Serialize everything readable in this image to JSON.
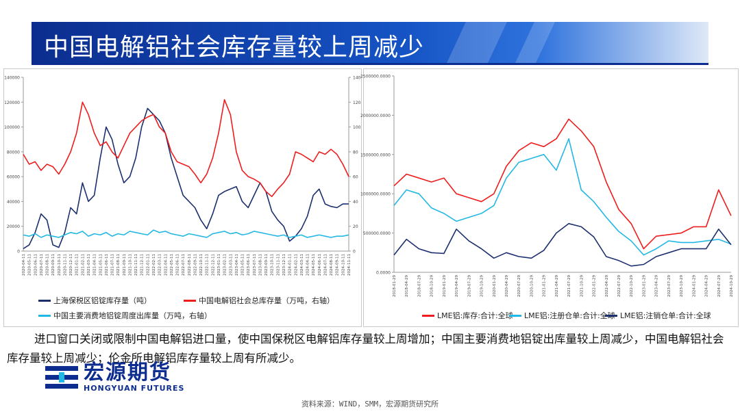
{
  "header": {
    "title": "中国电解铝社会库存量较上周减少"
  },
  "body_text": "进口窗口关闭或限制中国电解铝进口量，使中国保税区电解铝库存量较上周增加；中国主要消费地铝锭出库量较上周减少，中国电解铝社会库存量较上周减少；伦金所电解铝库存量较上周有所减少。",
  "brand": {
    "name_cn": "宏源期货",
    "name_en": "HONGYUAN FUTURES"
  },
  "source": "资料来源：WIND，SMM，宏源期货研究所",
  "chart_data": [
    {
      "type": "line",
      "x": [
        "2020-04-11",
        "2020-05-11",
        "2020-06-11",
        "2020-07-11",
        "2020-08-11",
        "2020-09-11",
        "2020-10-11",
        "2020-11-11",
        "2020-12-11",
        "2021-01-11",
        "2021-02-11",
        "2021-03-11",
        "2021-04-11",
        "2021-05-11",
        "2021-06-11",
        "2021-07-11",
        "2021-08-11",
        "2021-09-11",
        "2021-10-11",
        "2021-11-11",
        "2021-12-11",
        "2022-01-11",
        "2022-02-11",
        "2022-03-11",
        "2022-04-11",
        "2022-05-11",
        "2022-06-11",
        "2022-07-11",
        "2022-08-11",
        "2022-09-11",
        "2022-10-11",
        "2022-11-11",
        "2022-12-11",
        "2023-01-11",
        "2023-02-11",
        "2023-03-11",
        "2023-04-11",
        "2023-05-11",
        "2023-06-11",
        "2023-07-11",
        "2023-08-11",
        "2023-09-11",
        "2023-10-11",
        "2023-11-11",
        "2023-12-11",
        "2024-01-11",
        "2024-02-11",
        "2024-03-11",
        "2024-04-11",
        "2024-05-11",
        "2024-06-11",
        "2024-07-11",
        "2024-08-11",
        "2024-09-11",
        "2024-10-11",
        "2024-11-11"
      ],
      "y_left": {
        "ticks": [
          "0",
          "20000",
          "40000",
          "60000",
          "80000",
          "100000",
          "120000",
          "140000"
        ],
        "ylim": [
          0,
          140000
        ]
      },
      "y_right": {
        "ticks": [
          "0",
          "20",
          "40",
          "60",
          "80",
          "100",
          "120",
          "140"
        ],
        "ylim": [
          0,
          140
        ]
      },
      "legend_position": "bottom",
      "series": [
        {
          "name": "上海保税区铝锭库存量（吨）",
          "color": "#1b2f6e",
          "axis": "left",
          "values": [
            2000,
            5000,
            15000,
            30000,
            25000,
            5000,
            3000,
            15000,
            35000,
            30000,
            55000,
            40000,
            45000,
            75000,
            100000,
            90000,
            70000,
            55000,
            60000,
            75000,
            100000,
            115000,
            110000,
            105000,
            95000,
            75000,
            60000,
            45000,
            40000,
            35000,
            25000,
            18000,
            30000,
            45000,
            48000,
            50000,
            52000,
            40000,
            35000,
            45000,
            55000,
            48000,
            32000,
            25000,
            20000,
            8000,
            12000,
            18000,
            28000,
            45000,
            50000,
            38000,
            36000,
            35000,
            38000,
            38000
          ]
        },
        {
          "name": "中国电解铝社会总库存量（万吨，右轴）",
          "color": "#ee1c1c",
          "axis": "right",
          "values": [
            78,
            70,
            72,
            65,
            70,
            68,
            62,
            70,
            80,
            95,
            120,
            110,
            95,
            85,
            88,
            80,
            75,
            85,
            95,
            100,
            105,
            108,
            110,
            100,
            95,
            80,
            72,
            70,
            68,
            62,
            55,
            62,
            75,
            95,
            122,
            110,
            80,
            65,
            60,
            58,
            55,
            48,
            44,
            50,
            55,
            62,
            80,
            78,
            75,
            72,
            80,
            78,
            82,
            78,
            70,
            60
          ]
        },
        {
          "name": "中国主要消费地铝锭周度出库量（万吨，右轴）",
          "color": "#23b7e5",
          "axis": "right",
          "values": [
            13,
            12,
            14,
            11,
            13,
            12,
            11,
            13,
            15,
            14,
            16,
            12,
            14,
            13,
            15,
            12,
            14,
            13,
            16,
            15,
            14,
            13,
            17,
            15,
            16,
            14,
            13,
            12,
            14,
            13,
            12,
            11,
            14,
            15,
            16,
            14,
            15,
            13,
            14,
            16,
            15,
            14,
            13,
            12,
            13,
            11,
            12,
            13,
            11,
            12,
            13,
            12,
            11,
            12,
            12,
            13
          ]
        }
      ]
    },
    {
      "type": "line",
      "x": [
        "2018-01-29",
        "2018-04-29",
        "2018-07-29",
        "2018-10-29",
        "2019-01-29",
        "2019-04-29",
        "2019-07-29",
        "2019-10-29",
        "2020-01-29",
        "2020-04-29",
        "2020-07-29",
        "2020-10-29",
        "2021-01-29",
        "2021-04-29",
        "2021-07-29",
        "2021-10-29",
        "2022-01-29",
        "2022-04-29",
        "2022-07-29",
        "2022-10-29",
        "2023-01-29",
        "2023-04-29",
        "2023-07-29",
        "2023-10-29",
        "2024-01-29",
        "2024-04-29",
        "2024-07-29",
        "2024-10-29"
      ],
      "y_left": {
        "ticks": [
          "0.0000",
          "500000.0000",
          "1000000.0000",
          "1500000.0000",
          "2000000.0000",
          "2500000.0000"
        ],
        "ylim": [
          0,
          2500000
        ]
      },
      "legend_position": "bottom",
      "series": [
        {
          "name": "LME铝:库存:合计:全球",
          "color": "#ee1c1c",
          "values": [
            1100000,
            1250000,
            1200000,
            1150000,
            1200000,
            1000000,
            950000,
            900000,
            1000000,
            1350000,
            1550000,
            1650000,
            1600000,
            1700000,
            1950000,
            1800000,
            1600000,
            1150000,
            800000,
            620000,
            300000,
            460000,
            480000,
            500000,
            580000,
            580000,
            1050000,
            720000
          ]
        },
        {
          "name": "LME铝:注册仓单:合计:全球",
          "color": "#23b7e5",
          "values": [
            850000,
            1050000,
            1000000,
            820000,
            750000,
            650000,
            700000,
            750000,
            850000,
            1200000,
            1400000,
            1450000,
            1500000,
            1300000,
            1700000,
            1050000,
            900000,
            700000,
            520000,
            400000,
            220000,
            300000,
            400000,
            380000,
            380000,
            400000,
            420000,
            360000
          ]
        },
        {
          "name": "LME铝:注销仓单:合计:全球",
          "color": "#1b2f6e",
          "values": [
            220000,
            420000,
            300000,
            250000,
            240000,
            550000,
            400000,
            300000,
            180000,
            250000,
            200000,
            180000,
            280000,
            500000,
            620000,
            580000,
            450000,
            200000,
            150000,
            80000,
            100000,
            200000,
            250000,
            300000,
            300000,
            300000,
            550000,
            350000
          ]
        }
      ]
    }
  ]
}
